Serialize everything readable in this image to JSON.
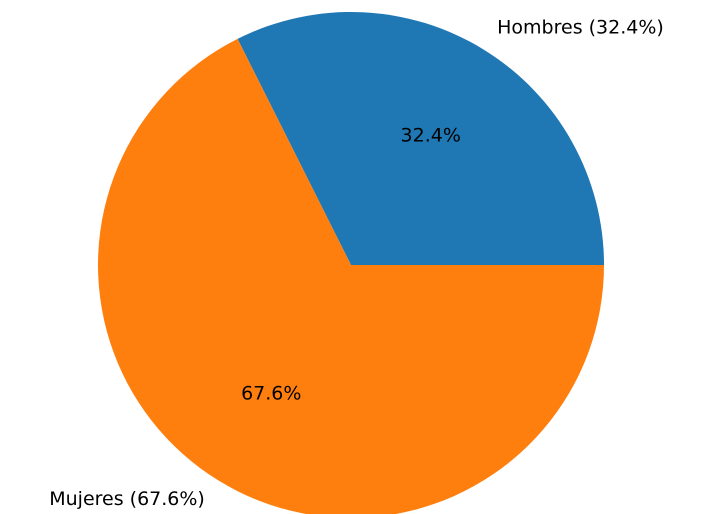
{
  "chart_data": {
    "type": "pie",
    "title": "",
    "slices": [
      {
        "category": "Hombres",
        "value": 32.4,
        "label": "Hombres (32.4%)",
        "pct_label": "32.4%",
        "color": "#1f77b4"
      },
      {
        "category": "Mujeres",
        "value": 67.6,
        "label": "Mujeres (67.6%)",
        "pct_label": "67.6%",
        "color": "#ff7f0e"
      }
    ],
    "start_angle_deg": 0,
    "direction": "counterclockwise",
    "legend": "none"
  }
}
